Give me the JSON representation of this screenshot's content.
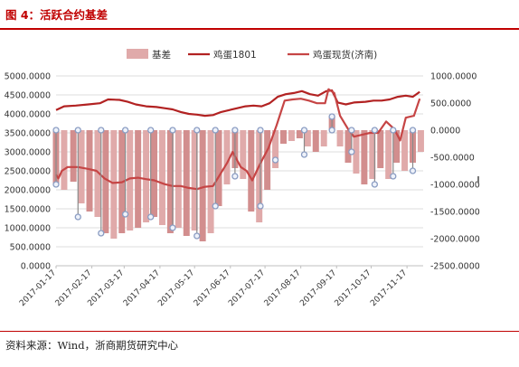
{
  "header": {
    "title": "图 4：活跃合约基差"
  },
  "footer": {
    "source": "资料来源：Wind，浙商期货研究中心"
  },
  "colors": {
    "title": "#c00000",
    "basis_fill": "#e0aaaa",
    "basis_dark": "#d28e8e",
    "futures_line": "#b22222",
    "spot_line": "#c64545",
    "marker_stroke": "#8b9dc3",
    "grid": "#dcdcdc"
  },
  "chart_data": {
    "type": "bar+line",
    "title": "",
    "legend": {
      "placement": "top",
      "entries": [
        "基差",
        "鸡蛋1801",
        "鸡蛋现货(济南)"
      ]
    },
    "grid": true,
    "xlabel": "",
    "ylabel_left": "",
    "ylabel_right": "",
    "ylim_left": [
      0,
      5000
    ],
    "yticks_left": [
      "5000.0000",
      "4500.0000",
      "4000.0000",
      "3500.0000",
      "3000.0000",
      "2500.0000",
      "2000.0000",
      "1500.0000",
      "1000.0000",
      "500.0000",
      "0.0000"
    ],
    "ylim_right": [
      -2500,
      1000
    ],
    "yticks_right": [
      "1000.0000",
      "500.0000",
      "0.0000",
      "-500.0000",
      "-1000.0000",
      "-1500.0000",
      "-2000.0000",
      "-2500.0000"
    ],
    "x_start": "2017-01-17",
    "xticks": [
      "2017-01-17",
      "2017-02-17",
      "2017-03-17",
      "2017-04-17",
      "2017-05-17",
      "2017-06-17",
      "2017-07-17",
      "2017-08-17",
      "2017-09-17",
      "2017-10-17",
      "2017-11-17"
    ],
    "series": [
      {
        "name": "鸡蛋1801",
        "axis": "left",
        "kind": "line",
        "points": [
          [
            "2017-01-17",
            4100
          ],
          [
            "2017-01-24",
            4200
          ],
          [
            "2017-02-03",
            4220
          ],
          [
            "2017-02-14",
            4250
          ],
          [
            "2017-02-24",
            4280
          ],
          [
            "2017-03-03",
            4380
          ],
          [
            "2017-03-13",
            4370
          ],
          [
            "2017-03-20",
            4320
          ],
          [
            "2017-03-27",
            4250
          ],
          [
            "2017-04-05",
            4200
          ],
          [
            "2017-04-14",
            4180
          ],
          [
            "2017-04-21",
            4150
          ],
          [
            "2017-04-28",
            4120
          ],
          [
            "2017-05-05",
            4050
          ],
          [
            "2017-05-12",
            4000
          ],
          [
            "2017-05-19",
            3980
          ],
          [
            "2017-05-26",
            3950
          ],
          [
            "2017-06-02",
            3970
          ],
          [
            "2017-06-09",
            4050
          ],
          [
            "2017-06-16",
            4100
          ],
          [
            "2017-06-23",
            4150
          ],
          [
            "2017-06-30",
            4200
          ],
          [
            "2017-07-07",
            4220
          ],
          [
            "2017-07-14",
            4200
          ],
          [
            "2017-07-21",
            4280
          ],
          [
            "2017-07-28",
            4450
          ],
          [
            "2017-08-04",
            4520
          ],
          [
            "2017-08-11",
            4550
          ],
          [
            "2017-08-18",
            4600
          ],
          [
            "2017-08-25",
            4520
          ],
          [
            "2017-09-01",
            4480
          ],
          [
            "2017-09-08",
            4600
          ],
          [
            "2017-09-13",
            4620
          ],
          [
            "2017-09-18",
            4300
          ],
          [
            "2017-09-25",
            4250
          ],
          [
            "2017-10-02",
            4300
          ],
          [
            "2017-10-12",
            4320
          ],
          [
            "2017-10-19",
            4350
          ],
          [
            "2017-10-26",
            4350
          ],
          [
            "2017-11-02",
            4380
          ],
          [
            "2017-11-09",
            4450
          ],
          [
            "2017-11-16",
            4480
          ],
          [
            "2017-11-22",
            4450
          ],
          [
            "2017-11-28",
            4580
          ]
        ]
      },
      {
        "name": "鸡蛋现货(济南)",
        "axis": "left",
        "kind": "line",
        "points": [
          [
            "2017-01-17",
            2400
          ],
          [
            "2017-01-19",
            2300
          ],
          [
            "2017-01-22",
            2500
          ],
          [
            "2017-01-27",
            2600
          ],
          [
            "2017-02-05",
            2600
          ],
          [
            "2017-02-14",
            2550
          ],
          [
            "2017-02-21",
            2500
          ],
          [
            "2017-02-28",
            2300
          ],
          [
            "2017-03-07",
            2180
          ],
          [
            "2017-03-15",
            2200
          ],
          [
            "2017-03-22",
            2300
          ],
          [
            "2017-03-29",
            2320
          ],
          [
            "2017-04-05",
            2280
          ],
          [
            "2017-04-12",
            2250
          ],
          [
            "2017-04-21",
            2150
          ],
          [
            "2017-04-28",
            2100
          ],
          [
            "2017-05-05",
            2100
          ],
          [
            "2017-05-12",
            2050
          ],
          [
            "2017-05-19",
            2020
          ],
          [
            "2017-05-26",
            2080
          ],
          [
            "2017-06-02",
            2100
          ],
          [
            "2017-06-07",
            2350
          ],
          [
            "2017-06-14",
            2700
          ],
          [
            "2017-06-19",
            3000
          ],
          [
            "2017-06-26",
            2600
          ],
          [
            "2017-07-01",
            2500
          ],
          [
            "2017-07-06",
            2250
          ],
          [
            "2017-07-13",
            2700
          ],
          [
            "2017-07-20",
            3100
          ],
          [
            "2017-07-27",
            3700
          ],
          [
            "2017-08-03",
            4350
          ],
          [
            "2017-08-10",
            4380
          ],
          [
            "2017-08-17",
            4400
          ],
          [
            "2017-08-24",
            4350
          ],
          [
            "2017-08-31",
            4280
          ],
          [
            "2017-09-07",
            4280
          ],
          [
            "2017-09-10",
            4650
          ],
          [
            "2017-09-15",
            4550
          ],
          [
            "2017-09-20",
            3950
          ],
          [
            "2017-09-27",
            3600
          ],
          [
            "2017-10-02",
            3400
          ],
          [
            "2017-10-09",
            3450
          ],
          [
            "2017-10-16",
            3500
          ],
          [
            "2017-10-23",
            3500
          ],
          [
            "2017-10-30",
            3800
          ],
          [
            "2017-11-06",
            3600
          ],
          [
            "2017-11-11",
            3300
          ],
          [
            "2017-11-16",
            3900
          ],
          [
            "2017-11-23",
            3950
          ],
          [
            "2017-11-28",
            4400
          ]
        ]
      },
      {
        "name": "基差",
        "axis": "right",
        "kind": "bar",
        "points": [
          [
            "2017-01-17",
            -1000
          ],
          [
            "2017-01-24",
            -1100
          ],
          [
            "2017-02-01",
            -950
          ],
          [
            "2017-02-08",
            -1350
          ],
          [
            "2017-02-15",
            -1500
          ],
          [
            "2017-02-22",
            -1600
          ],
          [
            "2017-03-01",
            -1900
          ],
          [
            "2017-03-08",
            -2000
          ],
          [
            "2017-03-15",
            -1900
          ],
          [
            "2017-03-22",
            -1850
          ],
          [
            "2017-03-29",
            -1800
          ],
          [
            "2017-04-05",
            -1700
          ],
          [
            "2017-04-12",
            -1600
          ],
          [
            "2017-04-19",
            -1750
          ],
          [
            "2017-04-26",
            -1900
          ],
          [
            "2017-05-03",
            -1800
          ],
          [
            "2017-05-10",
            -1950
          ],
          [
            "2017-05-17",
            -1850
          ],
          [
            "2017-05-24",
            -2050
          ],
          [
            "2017-05-31",
            -1900
          ],
          [
            "2017-06-07",
            -1400
          ],
          [
            "2017-06-14",
            -1000
          ],
          [
            "2017-06-21",
            -700
          ],
          [
            "2017-06-28",
            -900
          ],
          [
            "2017-07-05",
            -1500
          ],
          [
            "2017-07-12",
            -1700
          ],
          [
            "2017-07-19",
            -1100
          ],
          [
            "2017-07-26",
            -700
          ],
          [
            "2017-08-02",
            -250
          ],
          [
            "2017-08-09",
            -200
          ],
          [
            "2017-08-16",
            -150
          ],
          [
            "2017-08-23",
            -300
          ],
          [
            "2017-08-30",
            -400
          ],
          [
            "2017-09-06",
            -300
          ],
          [
            "2017-09-13",
            250
          ],
          [
            "2017-09-20",
            -300
          ],
          [
            "2017-09-27",
            -600
          ],
          [
            "2017-10-04",
            -800
          ],
          [
            "2017-10-11",
            -1000
          ],
          [
            "2017-10-18",
            -900
          ],
          [
            "2017-10-25",
            -700
          ],
          [
            "2017-11-01",
            -900
          ],
          [
            "2017-11-08",
            -600
          ],
          [
            "2017-11-15",
            -750
          ],
          [
            "2017-11-22",
            -600
          ],
          [
            "2017-11-29",
            -400
          ]
        ]
      }
    ],
    "basis_markers": [
      [
        "2017-01-17",
        0
      ],
      [
        "2017-01-17",
        -1000
      ],
      [
        "2017-02-05",
        0
      ],
      [
        "2017-02-05",
        -1600
      ],
      [
        "2017-02-25",
        0
      ],
      [
        "2017-02-25",
        -1900
      ],
      [
        "2017-03-18",
        0
      ],
      [
        "2017-03-18",
        -1550
      ],
      [
        "2017-04-09",
        0
      ],
      [
        "2017-04-09",
        -1600
      ],
      [
        "2017-04-28",
        0
      ],
      [
        "2017-04-28",
        -1800
      ],
      [
        "2017-05-19",
        0
      ],
      [
        "2017-05-19",
        -1950
      ],
      [
        "2017-06-04",
        0
      ],
      [
        "2017-06-04",
        -1400
      ],
      [
        "2017-06-21",
        0
      ],
      [
        "2017-06-21",
        -850
      ],
      [
        "2017-07-13",
        0
      ],
      [
        "2017-07-13",
        -1400
      ],
      [
        "2017-07-26",
        -550
      ],
      [
        "2017-08-20",
        0
      ],
      [
        "2017-08-20",
        -450
      ],
      [
        "2017-09-13",
        250
      ],
      [
        "2017-09-13",
        0
      ],
      [
        "2017-09-30",
        0
      ],
      [
        "2017-09-30",
        -400
      ],
      [
        "2017-10-20",
        0
      ],
      [
        "2017-10-20",
        -1000
      ],
      [
        "2017-11-05",
        0
      ],
      [
        "2017-11-05",
        -850
      ],
      [
        "2017-11-22",
        0
      ],
      [
        "2017-11-22",
        -750
      ]
    ]
  }
}
